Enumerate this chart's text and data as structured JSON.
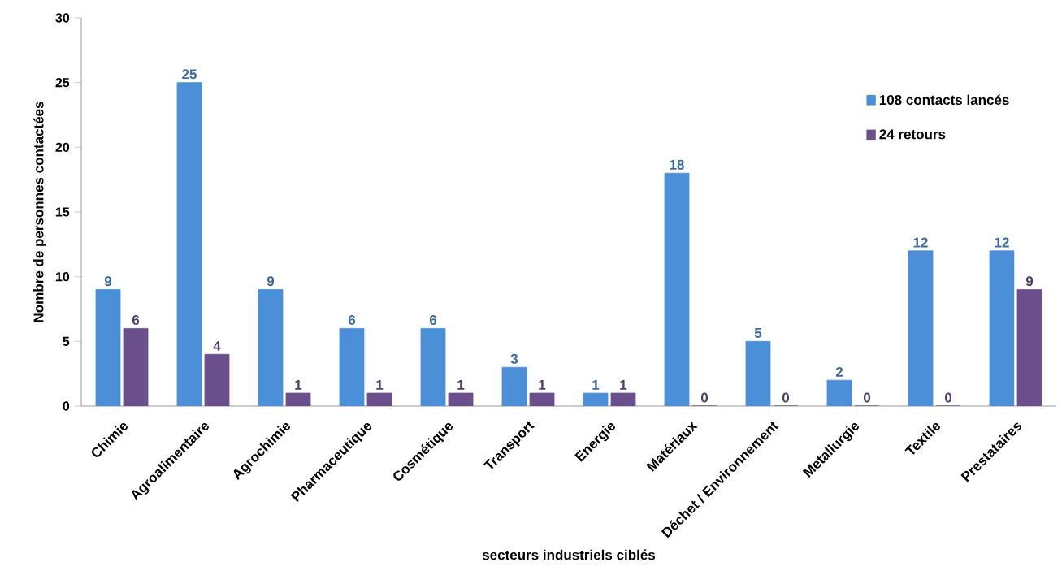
{
  "chart_data": {
    "type": "bar",
    "xlabel": "secteurs industriels ciblés",
    "ylabel": "Nombre de personnes contactées",
    "categories": [
      "Chimie",
      "Agroalimentaire",
      "Agrochimie",
      "Pharmaceutique",
      "Cosmétique",
      "Transport",
      "Energie",
      "Matériaux",
      "Déchet / Environnement",
      "Metallurgie",
      "Textile",
      "Prestataires"
    ],
    "series": [
      {
        "name": "108 contacts lancés",
        "color": "#4a8fd8",
        "values": [
          9,
          25,
          9,
          6,
          6,
          3,
          1,
          18,
          5,
          2,
          12,
          12
        ]
      },
      {
        "name": "24 retours",
        "color": "#6b4f8c",
        "values": [
          6,
          4,
          1,
          1,
          1,
          1,
          1,
          0,
          0,
          0,
          0,
          9
        ]
      }
    ],
    "ylim": [
      0,
      30
    ],
    "yticks": [
      0,
      5,
      10,
      15,
      20,
      25,
      30
    ],
    "grid": false,
    "legend": "top right",
    "data_labels": true
  }
}
